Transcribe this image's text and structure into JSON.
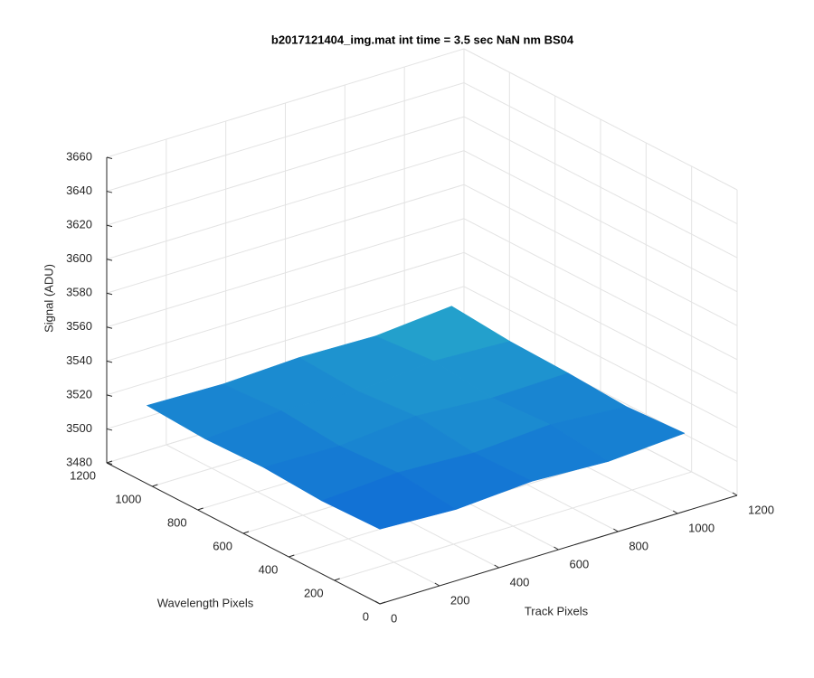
{
  "chart_data": {
    "type": "surface",
    "title": "b2017121404_img.mat int time = 3.5 sec  NaN nm BS04",
    "xlabel": "Track Pixels",
    "ylabel": "Wavelength Pixels",
    "zlabel": "Signal (ADU)",
    "x": [
      0,
      256,
      512,
      768,
      1024
    ],
    "y": [
      0,
      256,
      512,
      768,
      1024
    ],
    "z": [
      [
        3524,
        3522,
        3525,
        3523,
        3526
      ],
      [
        3523,
        3526,
        3524,
        3527,
        3524
      ],
      [
        3525,
        3524,
        3528,
        3525,
        3526
      ],
      [
        3524,
        3527,
        3525,
        3529,
        3527
      ],
      [
        3526,
        3525,
        3527,
        3526,
        3530
      ]
    ],
    "xlim": [
      0,
      1200
    ],
    "ylim": [
      0,
      1200
    ],
    "zlim": [
      3480,
      3660
    ],
    "xticks": [
      0,
      200,
      400,
      600,
      800,
      1000,
      1200
    ],
    "yticks": [
      0,
      200,
      400,
      600,
      800,
      1000,
      1200
    ],
    "zticks": [
      3480,
      3500,
      3520,
      3540,
      3560,
      3580,
      3600,
      3620,
      3640,
      3660
    ],
    "grid": true,
    "colormap": [
      "#0b5fd8",
      "#2bb6c8"
    ]
  }
}
